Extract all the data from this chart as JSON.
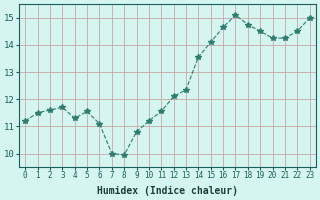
{
  "x": [
    0,
    1,
    2,
    3,
    4,
    5,
    6,
    7,
    8,
    9,
    10,
    11,
    12,
    13,
    14,
    15,
    16,
    17,
    18,
    19,
    20,
    21,
    22,
    23
  ],
  "y": [
    11.2,
    11.5,
    11.6,
    11.7,
    11.3,
    11.55,
    11.1,
    10.0,
    9.95,
    10.8,
    11.2,
    11.55,
    12.1,
    12.35,
    13.55,
    14.1,
    14.65,
    15.1,
    14.75,
    14.5,
    14.25,
    14.25,
    14.5,
    15.0
  ],
  "line_color": "#2e7d6e",
  "marker": "*",
  "marker_size": 4,
  "bg_color": "#d4f5f0",
  "xlabel": "Humidex (Indice chaleur)",
  "ylabel": "",
  "xlim": [
    -0.5,
    23.5
  ],
  "ylim": [
    9.5,
    15.5
  ],
  "yticks": [
    10,
    11,
    12,
    13,
    14,
    15
  ],
  "xticks": [
    0,
    1,
    2,
    3,
    4,
    5,
    6,
    7,
    8,
    9,
    10,
    11,
    12,
    13,
    14,
    15,
    16,
    17,
    18,
    19,
    20,
    21,
    22,
    23
  ],
  "tick_color": "#1a5f5a",
  "label_color": "#1a3f3a"
}
